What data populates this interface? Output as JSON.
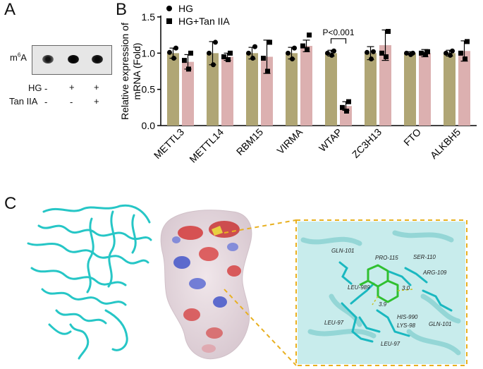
{
  "panel_a": {
    "letter": "A",
    "blot_label": "m6A",
    "rows": [
      {
        "label": "HG",
        "marks": [
          "-",
          "+",
          "+"
        ]
      },
      {
        "label": "Tan IIA",
        "marks": [
          "-",
          "-",
          "+"
        ]
      }
    ],
    "dot_intensity": [
      0.55,
      0.95,
      0.85
    ]
  },
  "panel_b": {
    "letter": "B",
    "annotation": "P<0.001"
  },
  "panel_c": {
    "letter": "C",
    "residue_labels": [
      "GLN-101",
      "PRO-115",
      "SER-110",
      "ARG-109",
      "LEU-989",
      "3.0",
      "3.9",
      "HIS-990",
      "LYS-98",
      "GLN-101",
      "LEU-97",
      "LEU-97"
    ]
  },
  "chart_data": {
    "type": "bar",
    "ylabel": "Relative expression of mRNA (Fold)",
    "ylim": [
      0,
      1.5
    ],
    "yticks": [
      0.0,
      0.5,
      1.0,
      1.5
    ],
    "tick_labels": [
      "0.0",
      "0.5",
      "1.0",
      "1.5"
    ],
    "categories": [
      "METTL3",
      "METTL14",
      "RBM15",
      "VIRMA",
      "WTAP",
      "ZC3H13",
      "FTO",
      "ALKBH5"
    ],
    "series": [
      {
        "name": "HG",
        "color": "#b0a675",
        "values": [
          1.0,
          1.0,
          1.0,
          1.0,
          1.0,
          1.0,
          1.0,
          1.0
        ],
        "error": [
          0.07,
          0.16,
          0.08,
          0.08,
          0.04,
          0.09,
          0.02,
          0.04
        ],
        "points": [
          [
            1.07,
            1.01,
            0.93
          ],
          [
            1.15,
            1.0,
            0.84
          ],
          [
            1.09,
            1.0,
            0.93
          ],
          [
            1.07,
            1.0,
            0.92
          ],
          [
            1.03,
            1.0,
            0.97
          ],
          [
            1.02,
            1.01,
            0.92
          ],
          [
            1.0,
            1.0,
            0.98
          ],
          [
            1.03,
            1.0,
            0.97
          ]
        ]
      },
      {
        "name": "HG+Tan IIA",
        "color": "#dcb0b0",
        "values": [
          0.88,
          0.95,
          0.95,
          1.1,
          0.27,
          1.11,
          1.0,
          1.03
        ],
        "error": [
          0.1,
          0.05,
          0.23,
          0.08,
          0.06,
          0.21,
          0.05,
          0.14
        ],
        "points": [
          [
            1.0,
            0.9,
            0.78
          ],
          [
            1.0,
            0.95,
            0.91
          ],
          [
            1.15,
            0.93,
            0.75
          ],
          [
            1.25,
            1.1,
            1.05
          ],
          [
            0.33,
            0.25,
            0.2
          ],
          [
            1.3,
            1.0,
            0.95
          ],
          [
            1.02,
            1.0,
            0.98
          ],
          [
            1.16,
            1.0,
            0.92
          ]
        ]
      }
    ],
    "legend_position": "top-left",
    "significance": {
      "category": "WTAP",
      "label": "P<0.001"
    }
  }
}
